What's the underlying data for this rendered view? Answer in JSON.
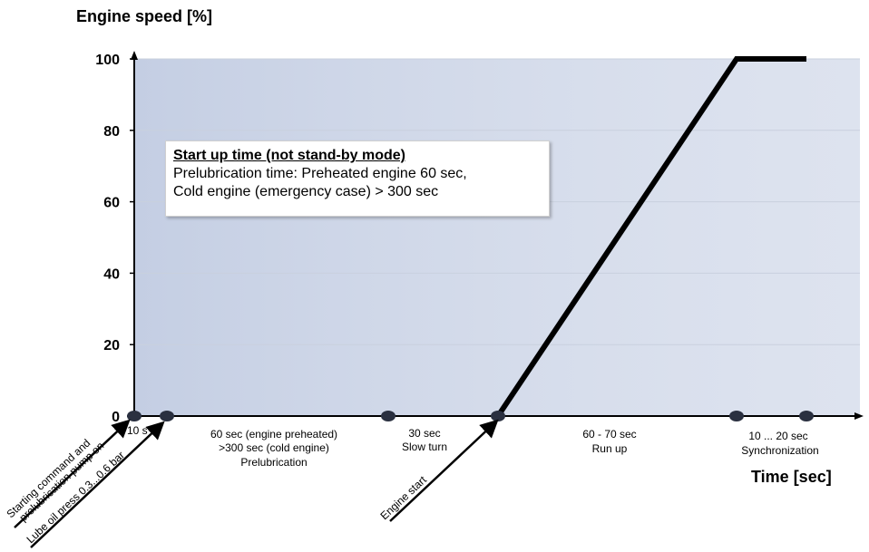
{
  "chart_data": {
    "type": "line",
    "ylabel": "Engine speed [%]",
    "xlabel": "Time [sec]",
    "ylim": [
      0,
      100
    ],
    "yticks": [
      0,
      20,
      40,
      60,
      80,
      100
    ],
    "grid": true,
    "series": [
      {
        "values": [
          [
            0,
            0
          ],
          [
            1,
            0
          ],
          [
            2,
            100
          ],
          [
            3,
            100
          ]
        ]
      }
    ],
    "x_event_points": [
      "start",
      "10 s",
      "prelubrication end",
      "engine start",
      "run up end",
      "synchronization end"
    ],
    "phase_labels": {
      "p10": "10 s",
      "pre_1": "60 sec (engine preheated)",
      "pre_2": ">300 sec (cold engine)",
      "pre_3": "Prelubrication",
      "slow_1": "30 sec",
      "slow_2": "Slow turn",
      "run_1": "60 - 70 sec",
      "run_2": "Run up",
      "sync_1": "10 ... 20 sec",
      "sync_2": "Synchronization"
    },
    "annotations": {
      "start_cmd_1": "Starting command and",
      "start_cmd_2": "prelubrication pump on",
      "lube": "Lube oil press 0.3...0.6 bar",
      "engine_start": "Engine start"
    },
    "info_box": {
      "title": "Start up time (not stand-by mode)",
      "line1": "Prelubrication time: Preheated engine 60 sec,",
      "line2": "Cold engine (emergency case) > 300 sec"
    }
  },
  "colors": {
    "plot_top": "#b9c5de",
    "plot_bottom": "#ffffff",
    "line": "#000000",
    "grid": "#c9d0de",
    "marker": "#2a3040"
  }
}
